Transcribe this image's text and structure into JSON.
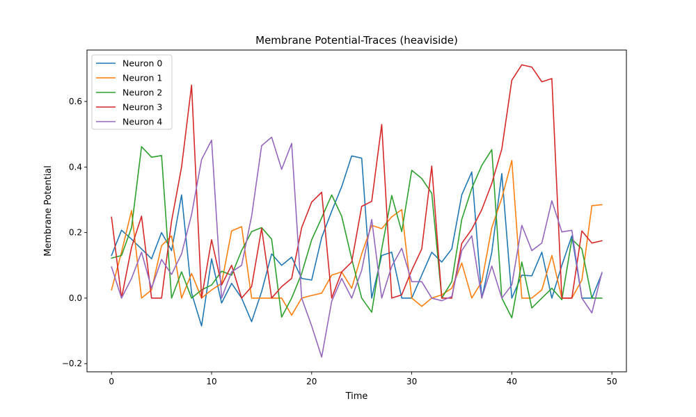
{
  "chart_data": {
    "type": "line",
    "title": "Membrane Potential-Traces (heaviside)",
    "xlabel": "Time",
    "ylabel": "Membrane Potential",
    "xlim": [
      -2.45,
      51.45
    ],
    "ylim": [
      -0.225,
      0.757
    ],
    "xticks": [
      0,
      10,
      20,
      30,
      40,
      50
    ],
    "yticks": [
      -0.2,
      0.0,
      0.2,
      0.4,
      0.6
    ],
    "ytick_labels": [
      "−0.2",
      "0.0",
      "0.2",
      "0.4",
      "0.6"
    ],
    "grid": false,
    "legend_position": "top-left",
    "x": [
      0,
      1,
      2,
      3,
      4,
      5,
      6,
      7,
      8,
      9,
      10,
      11,
      12,
      13,
      14,
      15,
      16,
      17,
      18,
      19,
      20,
      21,
      22,
      23,
      24,
      25,
      26,
      27,
      28,
      29,
      30,
      31,
      32,
      33,
      34,
      35,
      36,
      37,
      38,
      39,
      40,
      41,
      42,
      43,
      44,
      45,
      46,
      47,
      48,
      49
    ],
    "series": [
      {
        "name": "Neuron 0",
        "color": "#1f77b4",
        "values": [
          0.13,
          0.207,
          0.18,
          0.15,
          0.12,
          0.2,
          0.145,
          0.315,
          0.015,
          -0.085,
          0.12,
          -0.015,
          0.045,
          0.0,
          -0.072,
          0.02,
          0.135,
          0.1,
          0.125,
          0.06,
          0.055,
          0.185,
          0.265,
          0.34,
          0.434,
          0.427,
          0.0,
          0.13,
          0.14,
          0.0,
          0.0,
          0.07,
          0.14,
          0.11,
          0.15,
          0.315,
          0.385,
          0.0,
          0.14,
          0.38,
          0.0,
          0.07,
          0.068,
          0.14,
          0.0,
          0.1,
          0.19,
          0.0,
          0.0,
          0.075
        ]
      },
      {
        "name": "Neuron 1",
        "color": "#ff7f0e",
        "values": [
          0.025,
          0.14,
          0.267,
          0.0,
          0.025,
          0.16,
          0.19,
          0.0,
          0.075,
          0.0,
          0.025,
          0.045,
          0.205,
          0.218,
          0.0,
          0.0,
          0.0,
          0.0,
          -0.052,
          0.0,
          0.008,
          0.015,
          0.07,
          0.08,
          0.03,
          0.135,
          0.222,
          0.212,
          0.248,
          0.27,
          0.0,
          -0.025,
          0.0,
          0.01,
          0.03,
          0.107,
          0.0,
          0.05,
          0.215,
          0.305,
          0.42,
          0.0,
          0.0,
          0.025,
          0.13,
          0.0,
          0.0,
          0.055,
          0.282,
          0.285
        ]
      },
      {
        "name": "Neuron 2",
        "color": "#2ca02c",
        "values": [
          0.122,
          0.13,
          0.215,
          0.462,
          0.43,
          0.435,
          0.0,
          0.08,
          0.0,
          0.025,
          0.04,
          0.082,
          0.07,
          0.145,
          0.203,
          0.215,
          0.18,
          -0.058,
          0.0,
          0.075,
          0.178,
          0.245,
          0.315,
          0.25,
          0.12,
          0.0,
          -0.043,
          0.15,
          0.313,
          0.203,
          0.39,
          0.365,
          0.32,
          0.0,
          0.05,
          0.24,
          0.335,
          0.405,
          0.453,
          0.0,
          -0.06,
          0.11,
          -0.03,
          0.0,
          0.03,
          -0.005,
          0.18,
          0.15,
          0.0,
          0.0
        ]
      },
      {
        "name": "Neuron 3",
        "color": "#d62728",
        "values": [
          0.247,
          0.0,
          0.155,
          0.25,
          0.0,
          0.0,
          0.235,
          0.4,
          0.65,
          0.0,
          0.178,
          0.04,
          0.1,
          0.0,
          0.035,
          0.213,
          0.0,
          0.035,
          0.06,
          0.215,
          0.293,
          0.323,
          0.0,
          0.08,
          0.11,
          0.28,
          0.295,
          0.53,
          0.0,
          0.01,
          0.085,
          0.15,
          0.403,
          0.0,
          0.0,
          0.167,
          0.21,
          0.27,
          0.35,
          0.455,
          0.665,
          0.712,
          0.705,
          0.66,
          0.67,
          0.0,
          0.0,
          0.205,
          0.168,
          0.175
        ]
      },
      {
        "name": "Neuron 4",
        "color": "#9467bd",
        "values": [
          0.095,
          0.0,
          0.06,
          0.14,
          0.03,
          0.118,
          0.072,
          0.135,
          0.255,
          0.423,
          0.482,
          0.0,
          0.08,
          0.1,
          0.25,
          0.465,
          0.491,
          0.393,
          0.472,
          0.0,
          -0.085,
          -0.18,
          -0.01,
          0.06,
          0.0,
          0.085,
          0.24,
          0.0,
          0.097,
          0.152,
          0.05,
          0.05,
          0.0,
          -0.008,
          0.005,
          0.145,
          0.19,
          0.0,
          0.098,
          0.0,
          0.04,
          0.222,
          0.145,
          0.168,
          0.297,
          0.202,
          0.207,
          0.0,
          -0.045,
          0.078
        ]
      }
    ]
  }
}
